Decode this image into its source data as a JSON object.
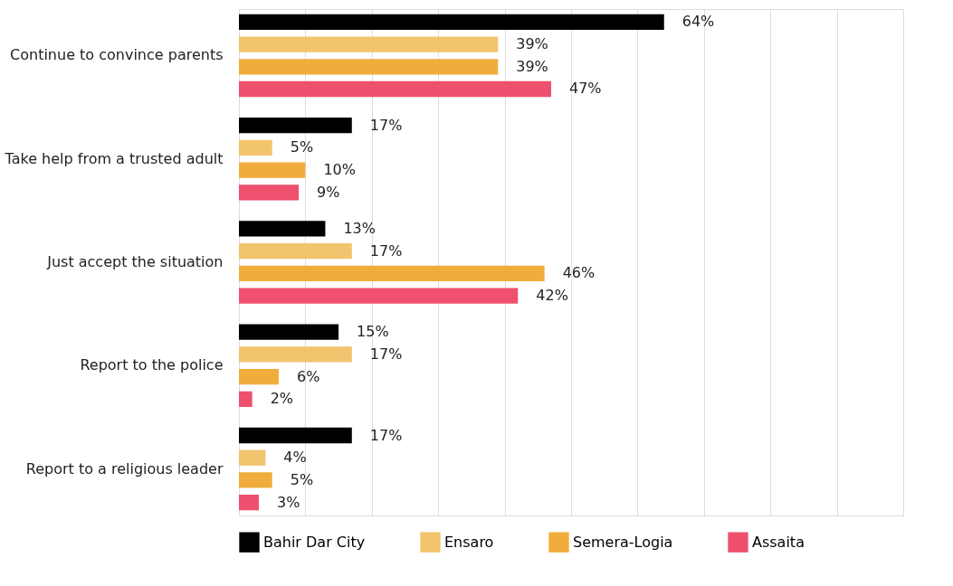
{
  "chart_data": {
    "type": "bar",
    "orientation": "horizontal",
    "categories": [
      "Continue to convince parents",
      "Take help from a trusted adult",
      "Just accept the situation",
      "Report to the police",
      "Report to a religious leader"
    ],
    "series": [
      {
        "name": "Bahir Dar City",
        "color": "#000000",
        "values": [
          64,
          17,
          13,
          15,
          17
        ],
        "value_labels": [
          "64%",
          "17%",
          "13%",
          "15%",
          "17%"
        ]
      },
      {
        "name": "Ensaro",
        "color": "#f2c46d",
        "values": [
          39,
          5,
          17,
          17,
          4
        ],
        "value_labels": [
          "39%",
          "5%",
          "17%",
          "17%",
          "4%"
        ]
      },
      {
        "name": "Semera-Logia",
        "color": "#f0ad3c",
        "values": [
          39,
          10,
          46,
          6,
          5
        ],
        "value_labels": [
          "39%",
          "10%",
          "46%",
          "6%",
          "5%"
        ]
      },
      {
        "name": "Assaita",
        "color": "#ee506e",
        "values": [
          47,
          9,
          42,
          2,
          3
        ],
        "value_labels": [
          "47%",
          "9%",
          "42%",
          "2%",
          "3%"
        ]
      }
    ],
    "xlim": [
      0,
      100
    ],
    "xticks": [
      {
        "value": 0,
        "label": null
      },
      {
        "value": 10,
        "label": null
      },
      {
        "value": 20,
        "label": null
      },
      {
        "value": 30,
        "label": null
      },
      {
        "value": 40,
        "label": null
      },
      {
        "value": 50,
        "label": null
      },
      {
        "value": 60,
        "label": null
      },
      {
        "value": 70,
        "label": null
      },
      {
        "value": 80,
        "label": null
      },
      {
        "value": 90,
        "label": null
      },
      {
        "value": 100,
        "label": null
      }
    ],
    "tick_labels": "y",
    "grid": "x",
    "legend": "bottom"
  }
}
